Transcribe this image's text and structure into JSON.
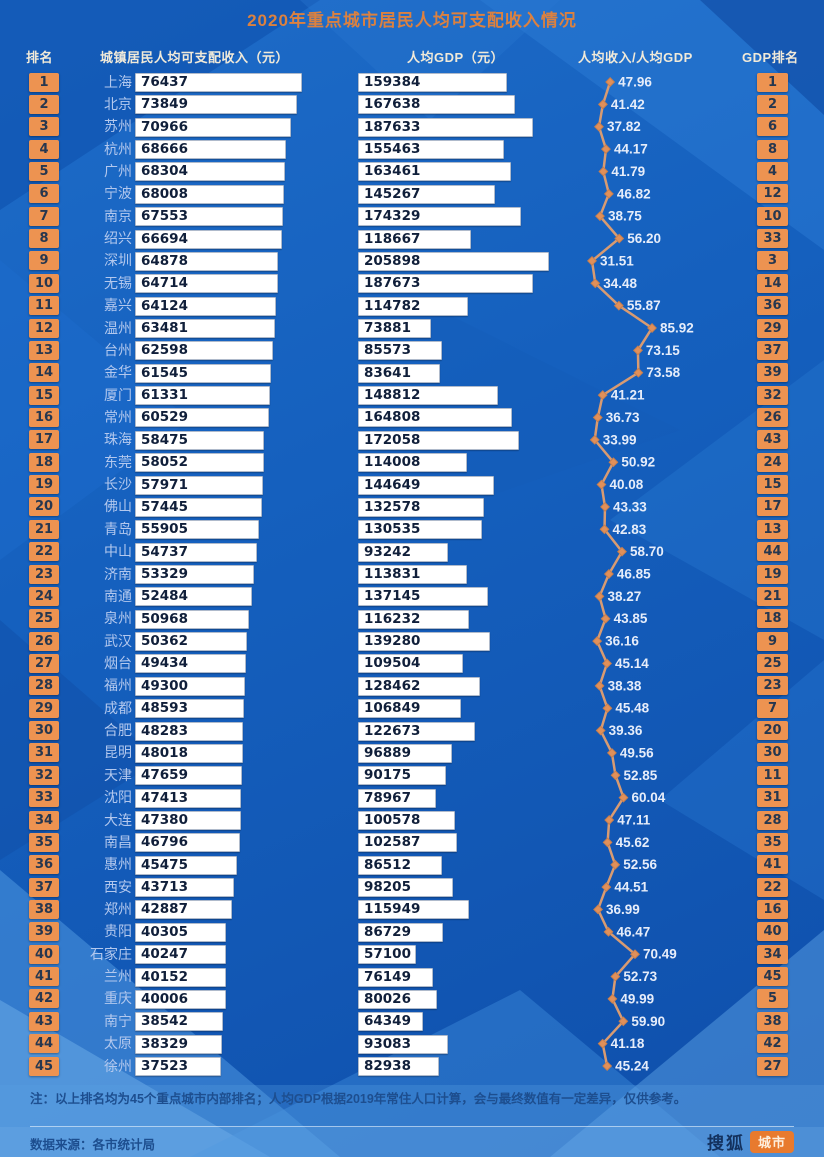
{
  "title": "2020年重点城市居民人均可支配收入情况",
  "columns": {
    "rank": "排名",
    "income": "城镇居民人均可支配收入（元）",
    "gdp": "人均GDP（元）",
    "ratio": "人均收入/人均GDP",
    "gdp_rank": "GDP排名"
  },
  "chart_data": {
    "type": "table",
    "title": "2020年重点城市居民人均可支配收入情况",
    "columns": [
      "排名",
      "城市",
      "城镇居民人均可支配收入（元）",
      "人均GDP（元）",
      "人均收入/人均GDP",
      "GDP排名"
    ],
    "line_series": {
      "name": "人均收入/人均GDP",
      "min": 31.51,
      "max": 85.92,
      "color": "#D89B72"
    },
    "rows": [
      {
        "rank": 1,
        "city": "上海",
        "income": 76437,
        "gdp": 159384,
        "ratio": "47.96",
        "gdp_rank": 1
      },
      {
        "rank": 2,
        "city": "北京",
        "income": 73849,
        "gdp": 167638,
        "ratio": "41.42",
        "gdp_rank": 2
      },
      {
        "rank": 3,
        "city": "苏州",
        "income": 70966,
        "gdp": 187633,
        "ratio": "37.82",
        "gdp_rank": 6
      },
      {
        "rank": 4,
        "city": "杭州",
        "income": 68666,
        "gdp": 155463,
        "ratio": "44.17",
        "gdp_rank": 8
      },
      {
        "rank": 5,
        "city": "广州",
        "income": 68304,
        "gdp": 163461,
        "ratio": "41.79",
        "gdp_rank": 4
      },
      {
        "rank": 6,
        "city": "宁波",
        "income": 68008,
        "gdp": 145267,
        "ratio": "46.82",
        "gdp_rank": 12
      },
      {
        "rank": 7,
        "city": "南京",
        "income": 67553,
        "gdp": 174329,
        "ratio": "38.75",
        "gdp_rank": 10
      },
      {
        "rank": 8,
        "city": "绍兴",
        "income": 66694,
        "gdp": 118667,
        "ratio": "56.20",
        "gdp_rank": 33
      },
      {
        "rank": 9,
        "city": "深圳",
        "income": 64878,
        "gdp": 205898,
        "ratio": "31.51",
        "gdp_rank": 3
      },
      {
        "rank": 10,
        "city": "无锡",
        "income": 64714,
        "gdp": 187673,
        "ratio": "34.48",
        "gdp_rank": 14
      },
      {
        "rank": 11,
        "city": "嘉兴",
        "income": 64124,
        "gdp": 114782,
        "ratio": "55.87",
        "gdp_rank": 36
      },
      {
        "rank": 12,
        "city": "温州",
        "income": 63481,
        "gdp": 73881,
        "ratio": "85.92",
        "gdp_rank": 29
      },
      {
        "rank": 13,
        "city": "台州",
        "income": 62598,
        "gdp": 85573,
        "ratio": "73.15",
        "gdp_rank": 37
      },
      {
        "rank": 14,
        "city": "金华",
        "income": 61545,
        "gdp": 83641,
        "ratio": "73.58",
        "gdp_rank": 39
      },
      {
        "rank": 15,
        "city": "厦门",
        "income": 61331,
        "gdp": 148812,
        "ratio": "41.21",
        "gdp_rank": 32
      },
      {
        "rank": 16,
        "city": "常州",
        "income": 60529,
        "gdp": 164808,
        "ratio": "36.73",
        "gdp_rank": 26
      },
      {
        "rank": 17,
        "city": "珠海",
        "income": 58475,
        "gdp": 172058,
        "ratio": "33.99",
        "gdp_rank": 43
      },
      {
        "rank": 18,
        "city": "东莞",
        "income": 58052,
        "gdp": 114008,
        "ratio": "50.92",
        "gdp_rank": 24
      },
      {
        "rank": 19,
        "city": "长沙",
        "income": 57971,
        "gdp": 144649,
        "ratio": "40.08",
        "gdp_rank": 15
      },
      {
        "rank": 20,
        "city": "佛山",
        "income": 57445,
        "gdp": 132578,
        "ratio": "43.33",
        "gdp_rank": 17
      },
      {
        "rank": 21,
        "city": "青岛",
        "income": 55905,
        "gdp": 130535,
        "ratio": "42.83",
        "gdp_rank": 13
      },
      {
        "rank": 22,
        "city": "中山",
        "income": 54737,
        "gdp": 93242,
        "ratio": "58.70",
        "gdp_rank": 44
      },
      {
        "rank": 23,
        "city": "济南",
        "income": 53329,
        "gdp": 113831,
        "ratio": "46.85",
        "gdp_rank": 19
      },
      {
        "rank": 24,
        "city": "南通",
        "income": 52484,
        "gdp": 137145,
        "ratio": "38.27",
        "gdp_rank": 21
      },
      {
        "rank": 25,
        "city": "泉州",
        "income": 50968,
        "gdp": 116232,
        "ratio": "43.85",
        "gdp_rank": 18
      },
      {
        "rank": 26,
        "city": "武汉",
        "income": 50362,
        "gdp": 139280,
        "ratio": "36.16",
        "gdp_rank": 9
      },
      {
        "rank": 27,
        "city": "烟台",
        "income": 49434,
        "gdp": 109504,
        "ratio": "45.14",
        "gdp_rank": 25
      },
      {
        "rank": 28,
        "city": "福州",
        "income": 49300,
        "gdp": 128462,
        "ratio": "38.38",
        "gdp_rank": 23
      },
      {
        "rank": 29,
        "city": "成都",
        "income": 48593,
        "gdp": 106849,
        "ratio": "45.48",
        "gdp_rank": 7
      },
      {
        "rank": 30,
        "city": "合肥",
        "income": 48283,
        "gdp": 122673,
        "ratio": "39.36",
        "gdp_rank": 20
      },
      {
        "rank": 31,
        "city": "昆明",
        "income": 48018,
        "gdp": 96889,
        "ratio": "49.56",
        "gdp_rank": 30
      },
      {
        "rank": 32,
        "city": "天津",
        "income": 47659,
        "gdp": 90175,
        "ratio": "52.85",
        "gdp_rank": 11
      },
      {
        "rank": 33,
        "city": "沈阳",
        "income": 47413,
        "gdp": 78967,
        "ratio": "60.04",
        "gdp_rank": 31
      },
      {
        "rank": 34,
        "city": "大连",
        "income": 47380,
        "gdp": 100578,
        "ratio": "47.11",
        "gdp_rank": 28
      },
      {
        "rank": 35,
        "city": "南昌",
        "income": 46796,
        "gdp": 102587,
        "ratio": "45.62",
        "gdp_rank": 35
      },
      {
        "rank": 36,
        "city": "惠州",
        "income": 45475,
        "gdp": 86512,
        "ratio": "52.56",
        "gdp_rank": 41
      },
      {
        "rank": 37,
        "city": "西安",
        "income": 43713,
        "gdp": 98205,
        "ratio": "44.51",
        "gdp_rank": 22
      },
      {
        "rank": 38,
        "city": "郑州",
        "income": 42887,
        "gdp": 115949,
        "ratio": "36.99",
        "gdp_rank": 16
      },
      {
        "rank": 39,
        "city": "贵阳",
        "income": 40305,
        "gdp": 86729,
        "ratio": "46.47",
        "gdp_rank": 40
      },
      {
        "rank": 40,
        "city": "石家庄",
        "income": 40247,
        "gdp": 57100,
        "ratio": "70.49",
        "gdp_rank": 34
      },
      {
        "rank": 41,
        "city": "兰州",
        "income": 40152,
        "gdp": 76149,
        "ratio": "52.73",
        "gdp_rank": 45
      },
      {
        "rank": 42,
        "city": "重庆",
        "income": 40006,
        "gdp": 80026,
        "ratio": "49.99",
        "gdp_rank": 5
      },
      {
        "rank": 43,
        "city": "南宁",
        "income": 38542,
        "gdp": 64349,
        "ratio": "59.90",
        "gdp_rank": 38
      },
      {
        "rank": 44,
        "city": "太原",
        "income": 38329,
        "gdp": 93083,
        "ratio": "41.18",
        "gdp_rank": 42
      },
      {
        "rank": 45,
        "city": "徐州",
        "income": 37523,
        "gdp": 82938,
        "ratio": "45.24",
        "gdp_rank": 27
      }
    ]
  },
  "footer": {
    "note": "注：以上排名均为45个重点城市内部排名；人均GDP根据2019年常住人口计算，会与最终数值有一定差异，仅供参考。",
    "source": "数据来源：各市统计局",
    "logo_text": "搜狐",
    "logo_badge": "城市"
  },
  "colors": {
    "accent_orange": "#ED9351",
    "line_orange": "#D89B72",
    "title_orange": "#DB8140",
    "bar_fill": "#FFFFFF",
    "background_blue": "#1560BE"
  }
}
